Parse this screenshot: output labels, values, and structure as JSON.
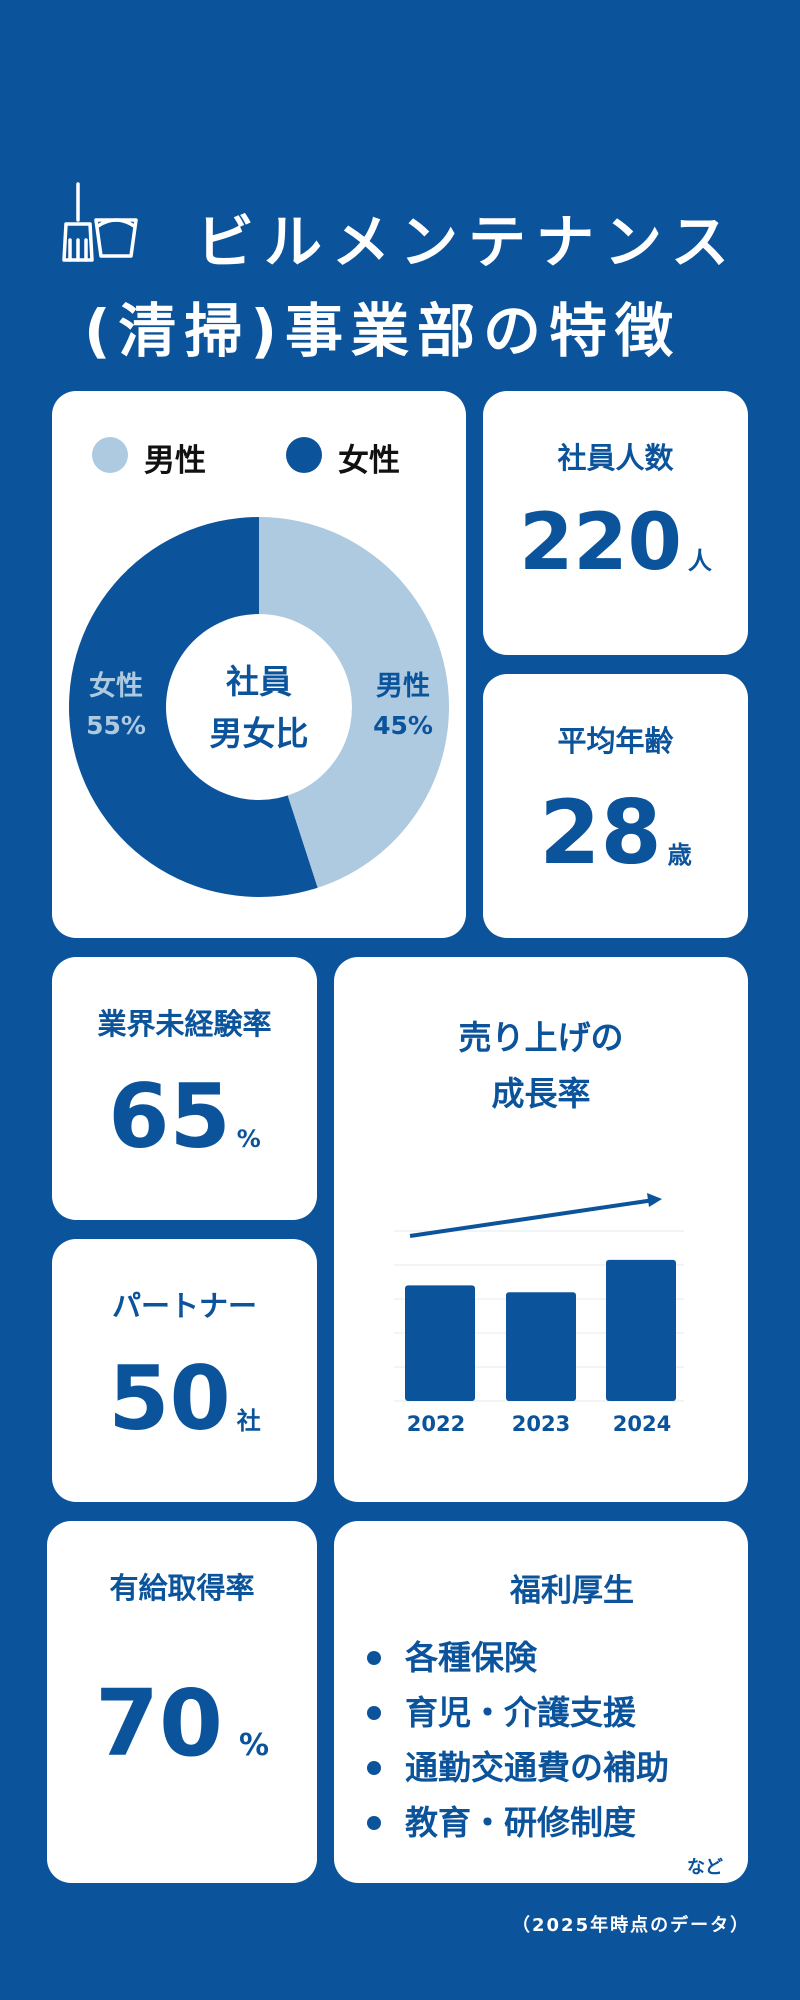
{
  "header": {
    "title_line1": "ビルメンテナンス",
    "title_line2": "(清掃)事業部の特徴",
    "icon": "broom-bucket-icon"
  },
  "gender": {
    "legend_male": "男性",
    "legend_female": "女性",
    "center_line1": "社員",
    "center_line2": "男女比",
    "male_label": "男性",
    "male_pct": "45%",
    "female_label": "女性",
    "female_pct": "55%",
    "male_value": 45,
    "female_value": 55,
    "male_color": "#adcae0",
    "female_color": "#0b539b"
  },
  "employees": {
    "label": "社員人数",
    "value": "220",
    "unit": "人"
  },
  "age": {
    "label": "平均年齢",
    "value": "28",
    "unit": "歳"
  },
  "inexperienced": {
    "label": "業界未経験率",
    "value": "65",
    "unit": "%"
  },
  "partners": {
    "label": "パートナー",
    "value": "50",
    "unit": "社"
  },
  "sales": {
    "title_line1": "売り上げの",
    "title_line2": "成長率",
    "trend_icon": "arrow-up-right-icon"
  },
  "chart_data": {
    "type": "bar",
    "categories": [
      "2022",
      "2023",
      "2024"
    ],
    "values": [
      68,
      64,
      83
    ],
    "ylim": [
      0,
      100
    ]
  },
  "paid_leave": {
    "label": "有給取得率",
    "value": "70",
    "unit": "%"
  },
  "welfare": {
    "title": "福利厚生",
    "items": [
      "各種保険",
      "育児・介護支援",
      "通勤交通費の補助",
      "教育・研修制度"
    ],
    "etc": "など"
  },
  "footer": {
    "note": "（2025年時点のデータ）"
  }
}
